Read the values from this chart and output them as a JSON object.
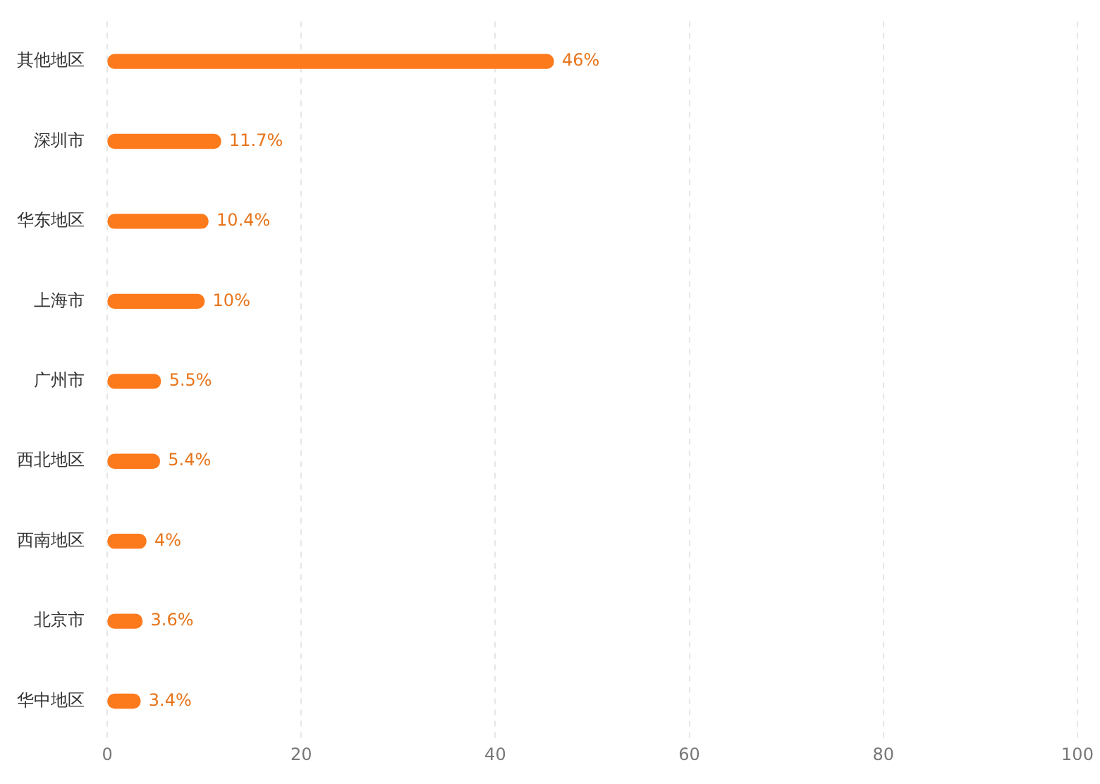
{
  "chart_data": {
    "type": "bar",
    "orientation": "horizontal",
    "categories": [
      "其他地区",
      "深圳市",
      "华东地区",
      "上海市",
      "广州市",
      "西北地区",
      "西南地区",
      "北京市",
      "华中地区"
    ],
    "values": [
      46,
      11.7,
      10.4,
      10,
      5.5,
      5.4,
      4,
      3.6,
      3.4
    ],
    "value_labels": [
      "46%",
      "11.7%",
      "10.4%",
      "10%",
      "5.5%",
      "5.4%",
      "4%",
      "3.6%",
      "3.4%"
    ],
    "color": "#fd7a1c",
    "xlim": [
      0,
      100
    ],
    "xticks": [
      0,
      20,
      40,
      60,
      80,
      100
    ],
    "grid": "x",
    "legend": false
  }
}
